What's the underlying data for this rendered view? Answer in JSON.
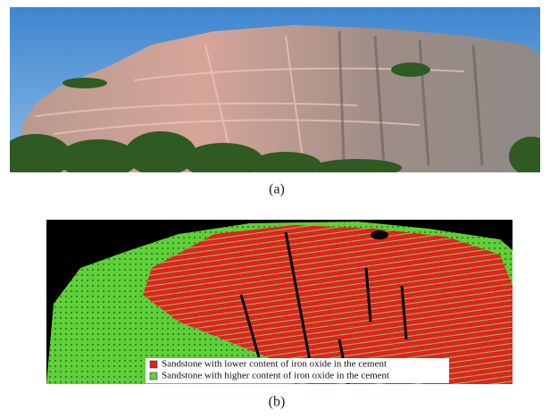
{
  "panels": [
    {
      "label": "(a)"
    },
    {
      "label": "(b)",
      "legend": [
        {
          "label": "Sandstone with lower content of iron oxide in the cement",
          "color": "#e3211f"
        },
        {
          "label": "Sandstone with higher content of iron oxide in the cement",
          "color": "#5fcf3a"
        }
      ]
    }
  ]
}
